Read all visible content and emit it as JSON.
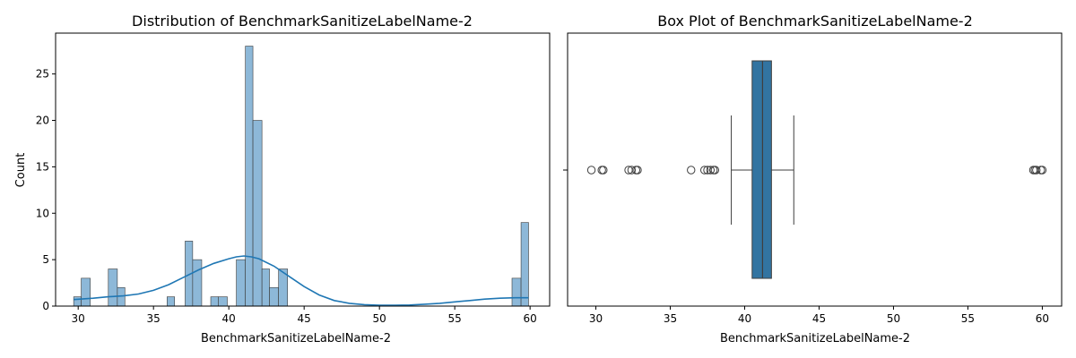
{
  "chart_data": [
    {
      "type": "bar",
      "subtype": "histogram",
      "title": "Distribution of BenchmarkSanitizeLabelName-2",
      "xlabel": "BenchmarkSanitizeLabelName-2",
      "ylabel": "Count",
      "xlim": [
        28.5,
        61.3
      ],
      "ylim": [
        0,
        29.4
      ],
      "xticks": [
        30,
        35,
        40,
        45,
        50,
        55,
        60
      ],
      "yticks": [
        0,
        5,
        10,
        15,
        20,
        25
      ],
      "grid": false,
      "bar_color": "#8db8d8",
      "bins": [
        {
          "x0": 29.7,
          "x1": 30.2,
          "count": 1
        },
        {
          "x0": 30.2,
          "x1": 30.8,
          "count": 3
        },
        {
          "x0": 32.0,
          "x1": 32.6,
          "count": 4
        },
        {
          "x0": 32.6,
          "x1": 33.1,
          "count": 2
        },
        {
          "x0": 35.9,
          "x1": 36.4,
          "count": 1
        },
        {
          "x0": 37.1,
          "x1": 37.6,
          "count": 7
        },
        {
          "x0": 37.6,
          "x1": 38.2,
          "count": 5
        },
        {
          "x0": 38.8,
          "x1": 39.3,
          "count": 1
        },
        {
          "x0": 39.3,
          "x1": 39.9,
          "count": 1
        },
        {
          "x0": 40.5,
          "x1": 41.1,
          "count": 5
        },
        {
          "x0": 41.1,
          "x1": 41.6,
          "count": 28
        },
        {
          "x0": 41.6,
          "x1": 42.2,
          "count": 20
        },
        {
          "x0": 42.2,
          "x1": 42.7,
          "count": 4
        },
        {
          "x0": 42.7,
          "x1": 43.3,
          "count": 2
        },
        {
          "x0": 43.3,
          "x1": 43.9,
          "count": 4
        },
        {
          "x0": 58.8,
          "x1": 59.4,
          "count": 3
        },
        {
          "x0": 59.4,
          "x1": 59.9,
          "count": 9
        }
      ],
      "kde": {
        "color": "#1f77b4",
        "x": [
          29.7,
          31,
          32,
          33,
          34,
          35,
          36,
          37,
          38,
          39,
          40,
          40.5,
          41,
          41.5,
          42,
          43,
          44,
          45,
          46,
          47,
          48,
          49,
          50,
          51,
          52,
          53,
          54,
          55,
          56,
          57,
          58,
          59,
          59.9
        ],
        "y": [
          0.7,
          0.85,
          1.0,
          1.1,
          1.3,
          1.7,
          2.3,
          3.1,
          3.9,
          4.6,
          5.1,
          5.3,
          5.4,
          5.3,
          5.1,
          4.3,
          3.2,
          2.1,
          1.2,
          0.6,
          0.3,
          0.15,
          0.1,
          0.1,
          0.12,
          0.2,
          0.3,
          0.45,
          0.6,
          0.75,
          0.85,
          0.9,
          0.9
        ]
      }
    },
    {
      "type": "box",
      "title": "Box Plot of BenchmarkSanitizeLabelName-2",
      "xlabel": "BenchmarkSanitizeLabelName-2",
      "xlim": [
        28.1,
        61.3
      ],
      "xticks": [
        30,
        35,
        40,
        45,
        50,
        55,
        60
      ],
      "grid": false,
      "box_color": "#3274a1",
      "whisker_low": 39.1,
      "q1": 40.5,
      "median": 41.2,
      "q3": 41.8,
      "whisker_high": 43.3,
      "outliers": [
        29.7,
        30.4,
        30.5,
        32.2,
        32.4,
        32.7,
        32.8,
        36.4,
        37.3,
        37.5,
        37.7,
        37.9,
        38.0,
        59.4,
        59.5,
        59.6,
        59.9,
        60.0
      ]
    }
  ]
}
